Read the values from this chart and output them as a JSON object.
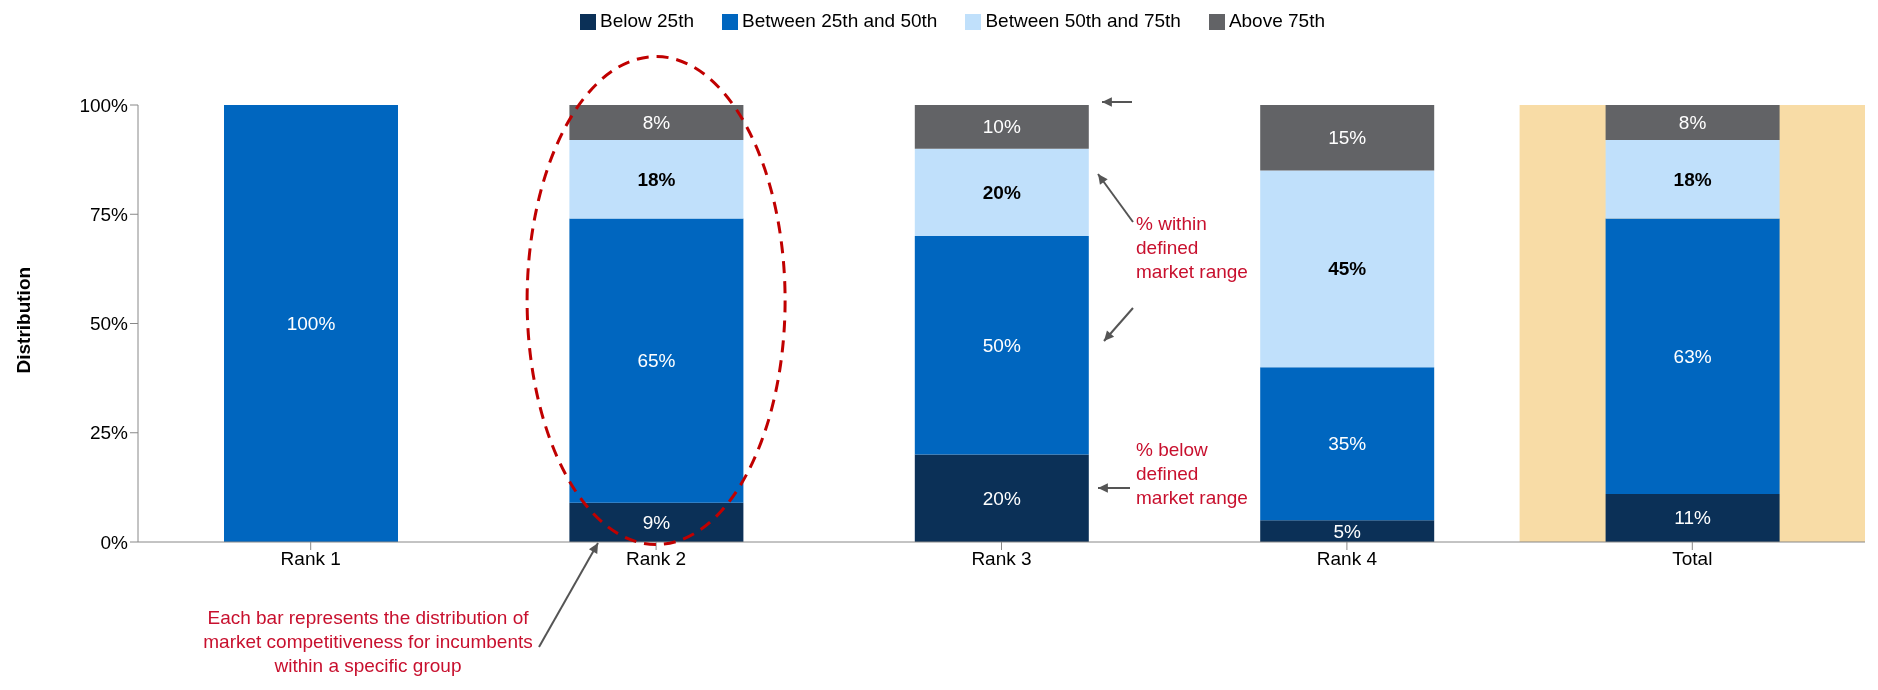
{
  "chart_data": {
    "type": "bar",
    "stacked": true,
    "ylabel": "Distribution",
    "legend": "top",
    "grid": false,
    "categories": [
      "Rank 1",
      "Rank 2",
      "Rank 3",
      "Rank 4",
      "Total"
    ],
    "series": [
      {
        "name": "Below 25th",
        "color": "#0b3057",
        "values": [
          0,
          9,
          20,
          5,
          11
        ],
        "value_labels": [
          null,
          "9%",
          "20%",
          "5%",
          "11%"
        ]
      },
      {
        "name": "Between 25th and 50th",
        "color": "#0066bf",
        "values": [
          100,
          65,
          50,
          35,
          63
        ],
        "value_labels": [
          "100%",
          "65%",
          "50%",
          "35%",
          "63%"
        ]
      },
      {
        "name": "Between 50th and 75th",
        "color": "#c0e0fb",
        "values": [
          0,
          18,
          20,
          45,
          18
        ],
        "value_labels": [
          null,
          "18%",
          "20%",
          "45%",
          "18%"
        ]
      },
      {
        "name": "Above 75th",
        "color": "#626366",
        "values": [
          0,
          8,
          10,
          15,
          8
        ],
        "value_labels": [
          null,
          "8%",
          "10%",
          "15%",
          "8%"
        ]
      }
    ],
    "ylim": [
      0,
      100
    ],
    "yticks": [
      {
        "value": 0,
        "label": "0%"
      },
      {
        "value": 25,
        "label": "25%"
      },
      {
        "value": 50,
        "label": "50%"
      },
      {
        "value": 75,
        "label": "75%"
      },
      {
        "value": 100,
        "label": "100%"
      }
    ],
    "bands": [
      {
        "axis": "x",
        "from": "Total",
        "to": "Total",
        "color": "#f8dca6"
      }
    ],
    "annotations": [
      "% within defined market range",
      "% below defined market range",
      "Each bar represents the distribution of market competitiveness for incumbents within a specific group"
    ]
  }
}
